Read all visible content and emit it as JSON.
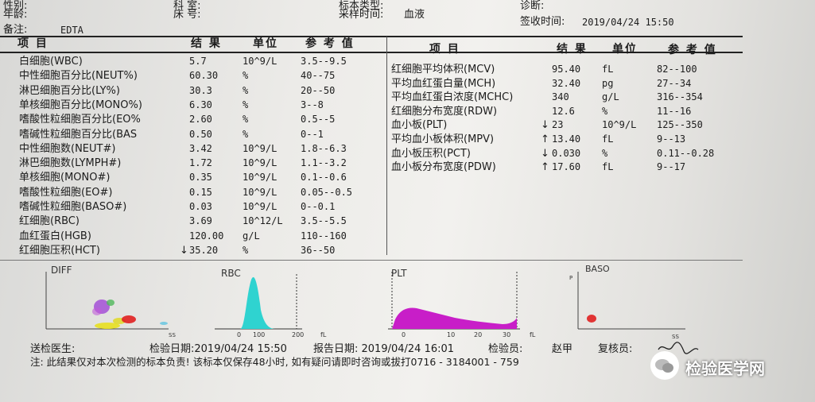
{
  "header": {
    "gender_label": "性别:",
    "dept_label": "科 室:",
    "sample_type_label": "标本类型:",
    "diagnosis_label": "诊断:",
    "age_label": "年龄:",
    "bed_label": "床 号:",
    "collect_time_label": "采样时间:",
    "collect_value": "血液",
    "sign_time_label": "签收时间:",
    "sign_time_value": "2019/04/24 15:50",
    "note_label": "备注:",
    "note_value": "EDTA"
  },
  "columns": {
    "item": "项 目",
    "result": "结 果",
    "unit": "单位",
    "ref": "参 考 值"
  },
  "left_rows": [
    {
      "name": "白细胞(WBC)",
      "flag": "",
      "result": "5.7",
      "unit": "10^9/L",
      "ref": "3.5--9.5"
    },
    {
      "name": "中性细胞百分比(NEUT%)",
      "flag": "",
      "result": "60.30",
      "unit": "%",
      "ref": "40--75"
    },
    {
      "name": "淋巴细胞百分比(LY%)",
      "flag": "",
      "result": "30.3",
      "unit": "%",
      "ref": "20--50"
    },
    {
      "name": "单核细胞百分比(MONO%)",
      "flag": "",
      "result": "6.30",
      "unit": "%",
      "ref": "3--8"
    },
    {
      "name": "嗜酸性粒细胞百分比(EO%",
      "flag": "",
      "result": "2.60",
      "unit": "%",
      "ref": "0.5--5"
    },
    {
      "name": "嗜碱性粒细胞百分比(BAS",
      "flag": "",
      "result": "0.50",
      "unit": "%",
      "ref": "0--1"
    },
    {
      "name": "中性细胞数(NEUT#)",
      "flag": "",
      "result": "3.42",
      "unit": "10^9/L",
      "ref": "1.8--6.3"
    },
    {
      "name": "淋巴细胞数(LYMPH#)",
      "flag": "",
      "result": "1.72",
      "unit": "10^9/L",
      "ref": "1.1--3.2"
    },
    {
      "name": "单核细胞(MONO#)",
      "flag": "",
      "result": "0.35",
      "unit": "10^9/L",
      "ref": "0.1--0.6"
    },
    {
      "name": "嗜酸性粒细胞(EO#)",
      "flag": "",
      "result": "0.15",
      "unit": "10^9/L",
      "ref": "0.05--0.5"
    },
    {
      "name": "嗜碱性粒细胞(BASO#)",
      "flag": "",
      "result": "0.03",
      "unit": "10^9/L",
      "ref": "0--0.1"
    },
    {
      "name": "红细胞(RBC)",
      "flag": "",
      "result": "3.69",
      "unit": "10^12/L",
      "ref": "3.5--5.5"
    },
    {
      "name": "血红蛋白(HGB)",
      "flag": "",
      "result": "120.00",
      "unit": "g/L",
      "ref": "110--160"
    },
    {
      "name": "红细胞压积(HCT)",
      "flag": "↓",
      "result": "35.20",
      "unit": "%",
      "ref": "36--50"
    }
  ],
  "right_rows": [
    {
      "name": "红细胞平均体积(MCV)",
      "flag": "",
      "result": "95.40",
      "unit": "fL",
      "ref": "82--100"
    },
    {
      "name": "平均血红蛋白量(MCH)",
      "flag": "",
      "result": "32.40",
      "unit": "pg",
      "ref": "27--34"
    },
    {
      "name": "平均血红蛋白浓度(MCHC)",
      "flag": "",
      "result": "340",
      "unit": "g/L",
      "ref": "316--354"
    },
    {
      "name": "红细胞分布宽度(RDW)",
      "flag": "",
      "result": "12.6",
      "unit": "%",
      "ref": "11--16"
    },
    {
      "name": "血小板(PLT)",
      "flag": "↓",
      "result": "23",
      "unit": "10^9/L",
      "ref": "125--350"
    },
    {
      "name": "平均血小板体积(MPV)",
      "flag": "↑",
      "result": "13.40",
      "unit": "fL",
      "ref": "9--13"
    },
    {
      "name": "血小板压积(PCT)",
      "flag": "↓",
      "result": "0.030",
      "unit": "%",
      "ref": "0.11--0.28"
    },
    {
      "name": "血小板分布宽度(PDW)",
      "flag": "↑",
      "result": "17.60",
      "unit": "fL",
      "ref": "9--17"
    }
  ],
  "plots": {
    "diff_title": "DIFF",
    "rbc_title": "RBC",
    "plt_title": "PLT",
    "baso_title": "BASO",
    "rbc_ticks": [
      "0",
      "100",
      "200",
      "fL"
    ],
    "plt_ticks": [
      "0",
      "10",
      "20",
      "30",
      "fL"
    ],
    "diff_axis_label": "SS",
    "baso_axis_label": "SS",
    "baso_corner_label": "P"
  },
  "footer": {
    "sender_label": "送检医生:",
    "test_date": "检验日期:2019/04/24 15:50",
    "report_date": "报告日期: 2019/04/24 16:01",
    "tester_label": "检验员:",
    "tester_name": "赵甲",
    "reviewer_label": "复核员:",
    "note": "注: 此结果仅对本次检测的标本负责! 该标本仅保存48小时, 如有疑问请即时咨询或拔打0716 - 3184001 - 759"
  },
  "watermark": "检验医学网",
  "colors": {
    "rbc_peak": "#2fd3d0",
    "plt_fill": "#c81ec8",
    "scatter_red": "#e02020",
    "scatter_yellow": "#e8e020",
    "scatter_purple": "#9b3cd6",
    "scatter_cyan": "#6fc8e0"
  }
}
